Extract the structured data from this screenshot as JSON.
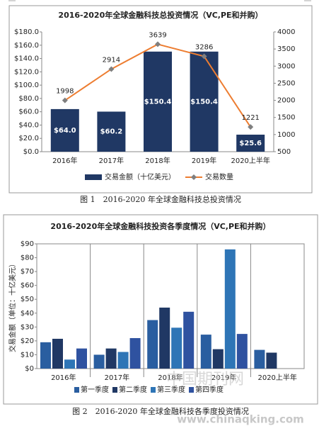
{
  "chart_data": [
    {
      "type": "bar-line",
      "title": "2016-2020年全球金融科技总投资情况（VC,PE和并购）",
      "caption": "图 1　2016-2020 年全球金融科技总投资情况",
      "categories": [
        "2016年",
        "2017年",
        "2018年",
        "2019年",
        "2020上半年"
      ],
      "series": [
        {
          "name": "交易金额（十亿美元）",
          "color": "#203864",
          "values": [
            64.0,
            60.2,
            150.4,
            150.4,
            25.6
          ],
          "value_labels": [
            "$64.0",
            "$60.2",
            "$150.4",
            "$150.4",
            "$25.6"
          ]
        },
        {
          "name": "交易数量",
          "color": "#ed7d31",
          "axis": "y2",
          "values": [
            1998,
            2914,
            3639,
            3286,
            1221
          ]
        }
      ],
      "ylim": [
        0,
        180
      ],
      "yticks": [
        {
          "value": 0,
          "label": "$0.0"
        },
        {
          "value": 20,
          "label": "$20.0"
        },
        {
          "value": 40,
          "label": "$40.0"
        },
        {
          "value": 60,
          "label": "$60.0"
        },
        {
          "value": 80,
          "label": "$80.0"
        },
        {
          "value": 100,
          "label": "$100.0"
        },
        {
          "value": 120,
          "label": "$120.0"
        },
        {
          "value": 140,
          "label": "$140.0"
        },
        {
          "value": 160,
          "label": "$160.0"
        },
        {
          "value": 180,
          "label": "$180.0"
        }
      ],
      "y2lim": [
        500,
        4000
      ],
      "y2ticks": [
        500,
        1000,
        1500,
        2000,
        2500,
        3000,
        3500,
        4000
      ],
      "legend": "bottom"
    },
    {
      "type": "bar",
      "title": "2016-2020年全球金融科技投资各季度情况（VC,PE和并购）",
      "caption": "图 2　2016-2020 年全球金融科技各季度投资情况",
      "y_label": "交易金额（单位：十亿美元）",
      "categories": [
        "2016年",
        "2017年",
        "2018年",
        "2019年",
        "2020上半年"
      ],
      "series": [
        {
          "name": "第一季度",
          "color": "#2a5ea0",
          "values": [
            19,
            10,
            35,
            24.5,
            13.5
          ]
        },
        {
          "name": "第二季度",
          "color": "#203864",
          "values": [
            21.5,
            14.5,
            44,
            14,
            11.5
          ]
        },
        {
          "name": "第三季度",
          "color": "#2e75b6",
          "values": [
            6.5,
            12,
            29.5,
            86,
            null
          ]
        },
        {
          "name": "第四季度",
          "color": "#2f52a0",
          "values": [
            14.5,
            22,
            41,
            25,
            null
          ]
        }
      ],
      "ylim": [
        0,
        90
      ],
      "yticks": [
        {
          "value": 0,
          "label": "$0"
        },
        {
          "value": 10,
          "label": "$10"
        },
        {
          "value": 20,
          "label": "$20"
        },
        {
          "value": 30,
          "label": "$30"
        },
        {
          "value": 40,
          "label": "$40"
        },
        {
          "value": 50,
          "label": "$50"
        },
        {
          "value": 60,
          "label": "$60"
        },
        {
          "value": 70,
          "label": "$70"
        },
        {
          "value": 80,
          "label": "$80"
        },
        {
          "value": 90,
          "label": "$90"
        }
      ],
      "legend": "bottom"
    }
  ],
  "watermark": [
    "中国期刊网",
    "www.chinaqking.com"
  ]
}
